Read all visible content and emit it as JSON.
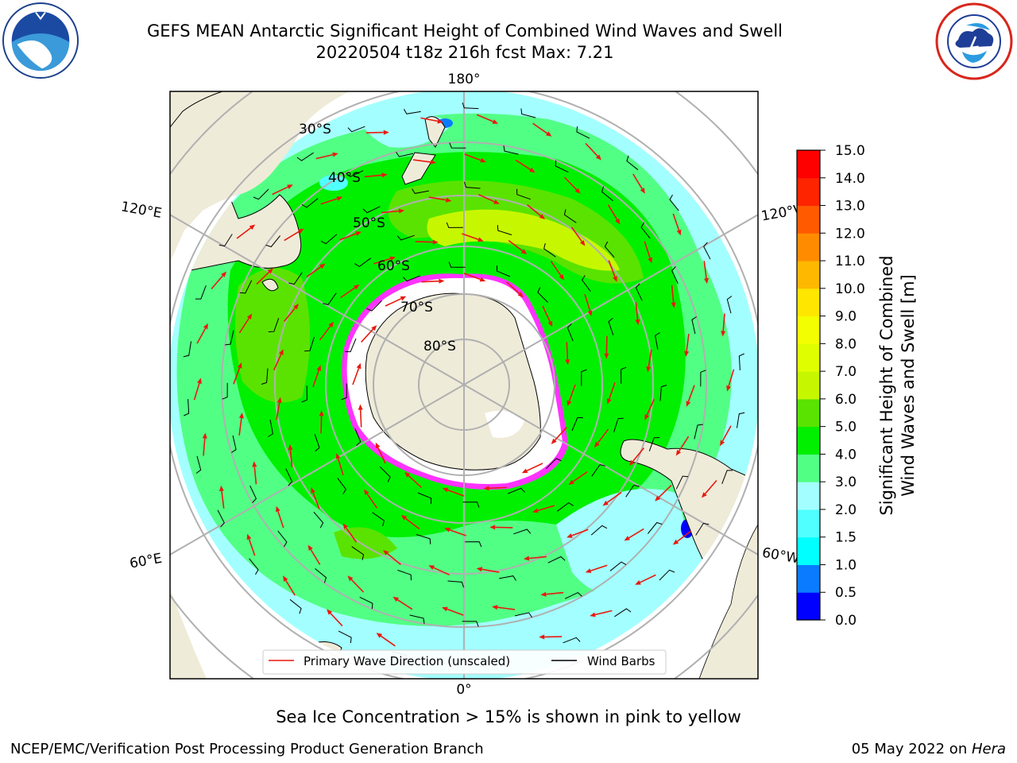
{
  "header": {
    "title_line1": "GEFS MEAN Antarctic Significant Height of Combined Wind Waves and Swell",
    "title_line2": "20220504 t18z 216h fcst   Max: 7.21"
  },
  "logos": {
    "left": "noaa-logo",
    "right": "nws-logo"
  },
  "map": {
    "projection": "south polar stereographic",
    "longitude_labels": {
      "top": "180°",
      "bottom": "0°",
      "left_upper": "120°E",
      "left_lower": "60°E",
      "right_upper": "120°W",
      "right_lower": "60°W"
    },
    "latitude_labels": [
      "30°S",
      "40°S",
      "50°S",
      "60°S",
      "70°S",
      "80°S"
    ],
    "legend": {
      "primary": "Primary Wave Direction (unscaled)",
      "barbs": "Wind Barbs",
      "primary_color": "#e8190f",
      "barbs_color": "#000000"
    },
    "colors": {
      "land": "#efebd9",
      "ice": "#ffffff",
      "ice_edge": [
        "#ff33ff",
        "#ffb000"
      ]
    }
  },
  "colorbar": {
    "label_line1": "Significant Height of Combined",
    "label_line2": "Wind Waves and Swell [m]",
    "ticks": [
      "0.0",
      "0.5",
      "1.0",
      "1.5",
      "2.0",
      "3.0",
      "4.0",
      "5.0",
      "6.0",
      "7.0",
      "8.0",
      "9.0",
      "10.0",
      "11.0",
      "12.0",
      "13.0",
      "14.0",
      "15.0"
    ],
    "colors": [
      "#0000ff",
      "#0a7bff",
      "#00ffff",
      "#50ffff",
      "#a3ffff",
      "#52ff85",
      "#00f000",
      "#5ae300",
      "#c6f700",
      "#dfff00",
      "#f3ff00",
      "#ffe600",
      "#ffb800",
      "#ff8c00",
      "#ff5a00",
      "#ff2400",
      "#ff0000"
    ]
  },
  "subtitle": "Sea Ice Concentration > 15% is shown in pink to yellow",
  "footer": {
    "left": "NCEP/EMC/Verification Post Processing Product Generation Branch",
    "right_prefix": "05 May 2022 on ",
    "right_host": "Hera"
  }
}
